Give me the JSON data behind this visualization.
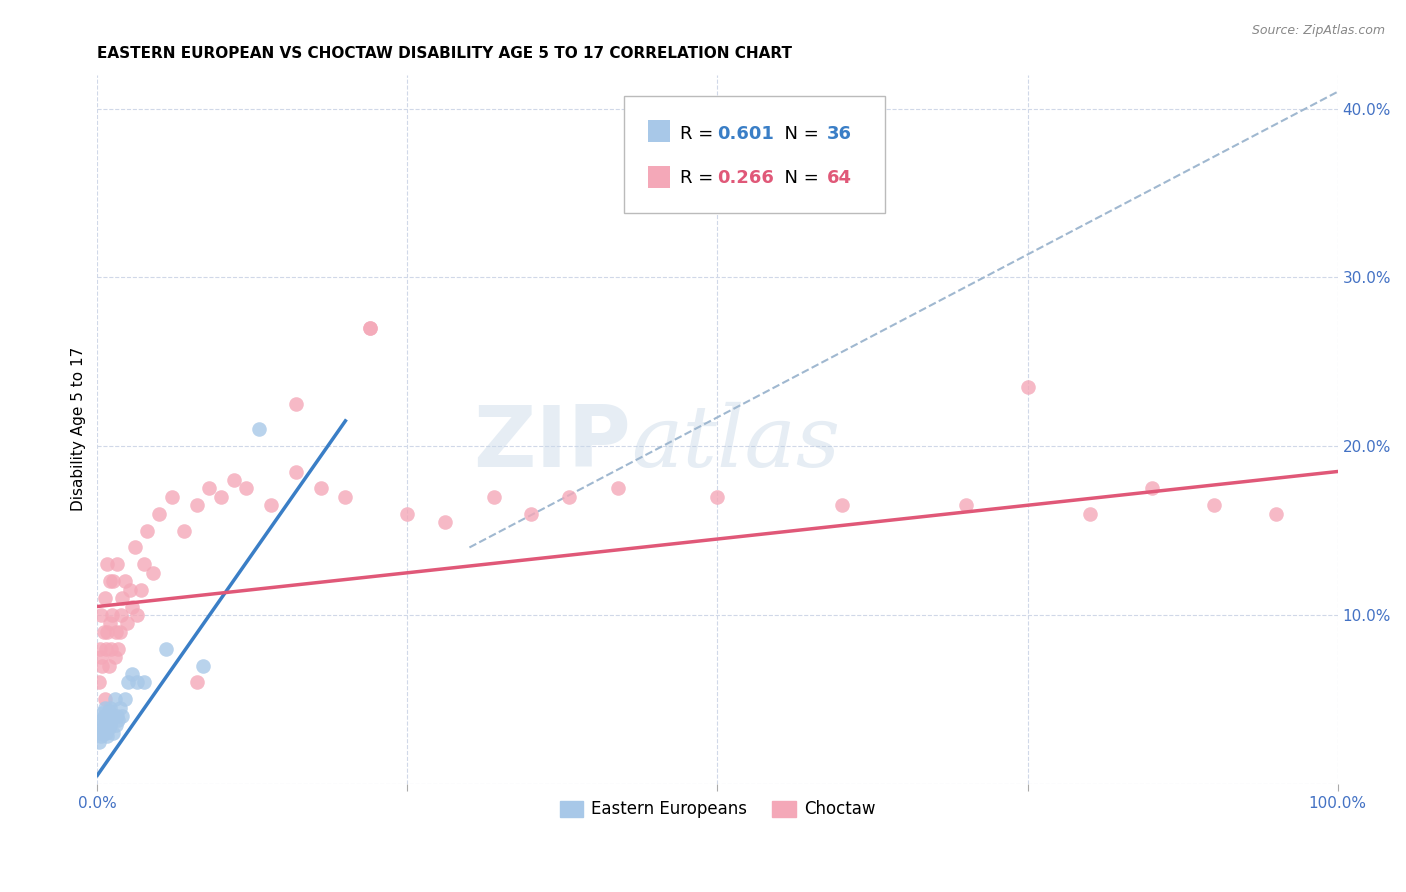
{
  "title": "EASTERN EUROPEAN VS CHOCTAW DISABILITY AGE 5 TO 17 CORRELATION CHART",
  "source": "Source: ZipAtlas.com",
  "ylabel": "Disability Age 5 to 17",
  "xlim": [
    0,
    1.0
  ],
  "ylim": [
    0.0,
    0.42
  ],
  "xticks": [
    0.0,
    0.25,
    0.5,
    0.75,
    1.0
  ],
  "xticklabels": [
    "0.0%",
    "",
    "",
    "",
    "100.0%"
  ],
  "yticks": [
    0.0,
    0.1,
    0.2,
    0.3,
    0.4
  ],
  "yticklabels": [
    "",
    "10.0%",
    "20.0%",
    "30.0%",
    "40.0%"
  ],
  "blue_R": "0.601",
  "blue_N": "36",
  "pink_R": "0.266",
  "pink_N": "64",
  "blue_color": "#a8c8e8",
  "pink_color": "#f4a8b8",
  "blue_line_color": "#3a7ec6",
  "pink_line_color": "#e05878",
  "diag_line_color": "#a0b8d0",
  "blue_scatter_x": [
    0.001,
    0.002,
    0.002,
    0.003,
    0.003,
    0.004,
    0.004,
    0.005,
    0.005,
    0.006,
    0.006,
    0.007,
    0.007,
    0.008,
    0.008,
    0.009,
    0.009,
    0.01,
    0.01,
    0.011,
    0.012,
    0.013,
    0.014,
    0.015,
    0.016,
    0.017,
    0.018,
    0.02,
    0.022,
    0.025,
    0.028,
    0.032,
    0.038,
    0.055,
    0.085,
    0.13
  ],
  "blue_scatter_y": [
    0.025,
    0.03,
    0.035,
    0.028,
    0.038,
    0.032,
    0.042,
    0.03,
    0.04,
    0.035,
    0.045,
    0.03,
    0.038,
    0.028,
    0.04,
    0.033,
    0.043,
    0.035,
    0.045,
    0.038,
    0.04,
    0.03,
    0.05,
    0.035,
    0.04,
    0.038,
    0.045,
    0.04,
    0.05,
    0.06,
    0.065,
    0.06,
    0.06,
    0.08,
    0.07,
    0.21
  ],
  "pink_scatter_x": [
    0.001,
    0.002,
    0.003,
    0.003,
    0.004,
    0.005,
    0.006,
    0.006,
    0.007,
    0.008,
    0.008,
    0.009,
    0.01,
    0.01,
    0.011,
    0.012,
    0.013,
    0.014,
    0.015,
    0.016,
    0.017,
    0.018,
    0.019,
    0.02,
    0.022,
    0.024,
    0.026,
    0.028,
    0.03,
    0.032,
    0.035,
    0.038,
    0.04,
    0.045,
    0.05,
    0.06,
    0.07,
    0.08,
    0.09,
    0.1,
    0.11,
    0.12,
    0.14,
    0.16,
    0.18,
    0.2,
    0.22,
    0.25,
    0.28,
    0.32,
    0.35,
    0.38,
    0.42,
    0.5,
    0.6,
    0.7,
    0.8,
    0.85,
    0.9,
    0.95,
    0.75,
    0.22,
    0.16,
    0.08
  ],
  "pink_scatter_y": [
    0.06,
    0.08,
    0.075,
    0.1,
    0.07,
    0.09,
    0.05,
    0.11,
    0.08,
    0.09,
    0.13,
    0.07,
    0.095,
    0.12,
    0.08,
    0.1,
    0.12,
    0.075,
    0.09,
    0.13,
    0.08,
    0.09,
    0.1,
    0.11,
    0.12,
    0.095,
    0.115,
    0.105,
    0.14,
    0.1,
    0.115,
    0.13,
    0.15,
    0.125,
    0.16,
    0.17,
    0.15,
    0.165,
    0.175,
    0.17,
    0.18,
    0.175,
    0.165,
    0.185,
    0.175,
    0.17,
    0.27,
    0.16,
    0.155,
    0.17,
    0.16,
    0.17,
    0.175,
    0.17,
    0.165,
    0.165,
    0.16,
    0.175,
    0.165,
    0.16,
    0.235,
    0.27,
    0.225,
    0.06
  ],
  "blue_line_x": [
    0.0,
    0.2
  ],
  "blue_line_y": [
    0.005,
    0.215
  ],
  "pink_line_x": [
    0.0,
    1.0
  ],
  "pink_line_y": [
    0.105,
    0.185
  ],
  "diag_line_x": [
    0.3,
    1.0
  ],
  "diag_line_y": [
    0.14,
    0.41
  ],
  "background_color": "#ffffff",
  "tick_color": "#4472c4",
  "grid_color": "#d0d8e8",
  "title_fontsize": 11,
  "axis_label_fontsize": 11,
  "tick_fontsize": 11
}
